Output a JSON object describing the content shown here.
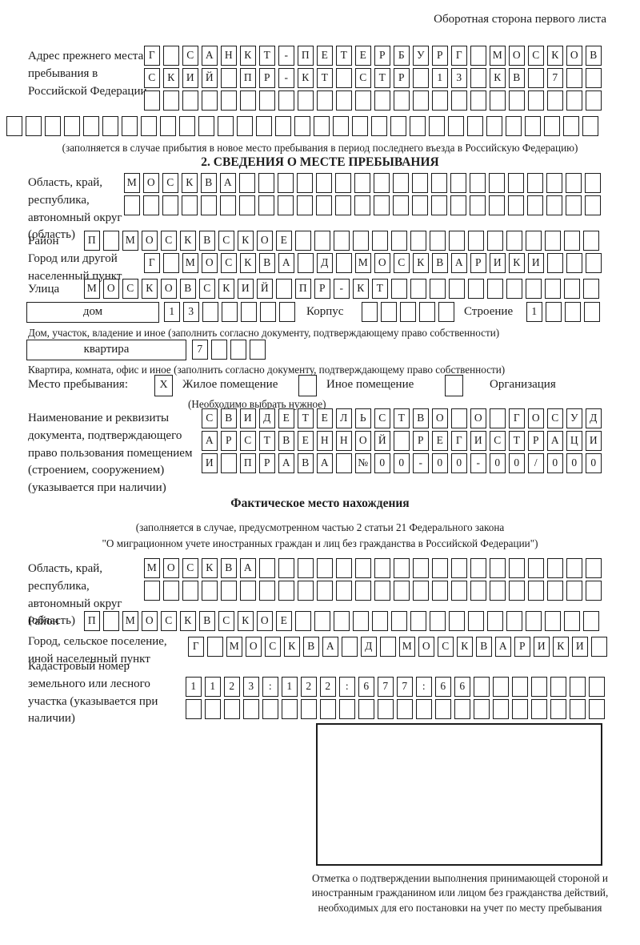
{
  "colors": {
    "ink": "#1c1c1c",
    "paper": "#ffffff"
  },
  "page_header": "Оборотная сторона первого листа",
  "prev_address": {
    "label": "Адрес прежнего места пребывания в Российской Федерации",
    "rows": [
      {
        "text": "Г САНКТ-ПЕТЕРБУРГ МОСКОВ",
        "len": 24
      },
      {
        "text": "СКИЙ ПР-КТ СТР 13 КВ 7",
        "len": 24
      },
      {
        "text": "",
        "len": 24
      }
    ],
    "full_row": {
      "text": "",
      "len": 31
    },
    "note": "(заполняется в случае прибытия в новое место пребывания в период последнего въезда в Российскую Федерацию)"
  },
  "section2": {
    "title": "2. СВЕДЕНИЯ О МЕСТЕ ПРЕБЫВАНИЯ",
    "region": {
      "label": "Область, край, республика, автономный округ (область)",
      "rows": [
        {
          "text": "МОСКВА",
          "len": 25
        },
        {
          "text": "",
          "len": 25
        }
      ]
    },
    "district": {
      "label": "Район",
      "cells": {
        "text": "П МОСКВСКОЕ",
        "len": 27
      }
    },
    "city": {
      "label": "Город или другой населенный пункт",
      "cells": {
        "text": "Г МОСКВА Д МОСКВАРИКИ",
        "len": 24
      }
    },
    "street": {
      "label": "Улица",
      "cells": {
        "text": "МОСКОВСКИЙ ПР-КТ",
        "len": 27
      }
    },
    "house": {
      "box_label": "дом",
      "house_cells": {
        "text": "13",
        "len": 7
      },
      "korpus_label": "Корпус",
      "korpus_cells": {
        "text": "",
        "len": 5
      },
      "stroenie_label": "Строение",
      "stroenie_cells": {
        "text": "1",
        "len": 4
      }
    },
    "house_note": "Дом, участок, владение и иное (заполнить согласно документу, подтверждающему право собственности)",
    "apartment": {
      "box_label": "квартира",
      "cells": {
        "text": "7",
        "len": 4
      }
    },
    "apartment_note": "Квартира, комната, офис и иное (заполнить согласно документу, подтверждающему право собственности)",
    "stay_type": {
      "label": "Место пребывания:",
      "options": [
        {
          "box": "X",
          "label": "Жилое помещение"
        },
        {
          "box": "",
          "label": "Иное помещение"
        },
        {
          "box": "",
          "label": "Организация"
        }
      ],
      "note": "(Необходимо выбрать нужное)"
    },
    "doc": {
      "label": "Наименование и реквизиты документа, подтверждающего право пользования помещением (строением, сооружением) (указывается при наличии)",
      "rows": [
        {
          "text": "СВИДЕТЕЛЬСТВО О ГОСУД",
          "len": 21
        },
        {
          "text": "АРСТВЕННОЙ РЕГИСТРАЦИ",
          "len": 21
        },
        {
          "text": "И ПРАВА №00-00-00/000",
          "len": 21
        }
      ]
    }
  },
  "actual_location": {
    "title": "Фактическое место нахождения",
    "note1": "(заполняется в случае, предусмотренном частью 2 статьи 21 Федерального закона",
    "note2": "\"О миграционном учете иностранных граждан и лиц без гражданства в Российской Федерации\")",
    "region": {
      "label": "Область, край, республика, автономный округ (область)",
      "rows": [
        {
          "text": "МОСКВА",
          "len": 24
        },
        {
          "text": "",
          "len": 24
        }
      ]
    },
    "district": {
      "label": "Район",
      "cells": {
        "text": "П МОСКВСКОЕ",
        "len": 27
      }
    },
    "city": {
      "label": "Город, сельское поселение, иной населенный пункт",
      "cells": {
        "text": "Г МОСКВА Д МОСКВАРИКИ",
        "len": 22
      }
    },
    "cadastre": {
      "label": "Кадастровый номер земельного или лесного участка (указывается при наличии)",
      "rows": [
        {
          "text": "1123:122:677:66",
          "len": 22
        },
        {
          "text": "",
          "len": 22
        }
      ]
    },
    "stamp_note": "Отметка о подтверждении выполнения принимающей стороной и иностранным гражданином или лицом без гражданства действий, необходимых для его постановки на учет по месту пребывания"
  }
}
